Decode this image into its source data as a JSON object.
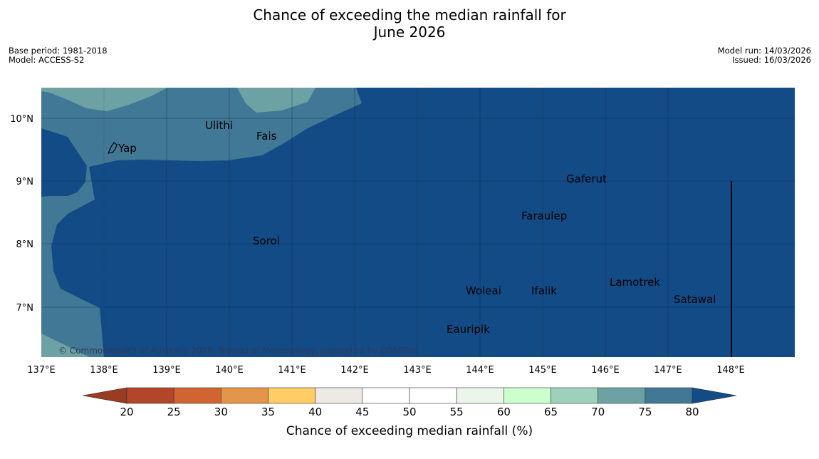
{
  "title": {
    "line1": "Chance of exceeding the median rainfall for",
    "line2": "June 2026"
  },
  "meta_left": {
    "base_period": "Base period: 1981-2018",
    "model": "Model: ACCESS-S2"
  },
  "meta_right": {
    "model_run": "Model run: 14/03/2026",
    "issued": "Issued: 16/03/2026"
  },
  "map": {
    "lon_labels": [
      "137°E",
      "138°E",
      "139°E",
      "140°E",
      "141°E",
      "142°E",
      "143°E",
      "144°E",
      "145°E",
      "146°E",
      "147°E",
      "148°E"
    ],
    "lat_labels": [
      "10°N",
      "9°N",
      "8°N",
      "7°N"
    ],
    "places": [
      {
        "name": "Yap"
      },
      {
        "name": "Ulithi"
      },
      {
        "name": "Fais"
      },
      {
        "name": "Gaferut"
      },
      {
        "name": "Faraulep"
      },
      {
        "name": "Sorol"
      },
      {
        "name": "Lamotrek"
      },
      {
        "name": "Woleai"
      },
      {
        "name": "Ifalik"
      },
      {
        "name": "Satawal"
      },
      {
        "name": "Eauripik"
      }
    ],
    "copyright": "© Commonwealth of Australia 2026, Bureau of Meteorology, supported by COSPPac",
    "colors": {
      "above_80": "#134b87",
      "band_75_80": "#417895",
      "band_70_75": "#6da2a4"
    }
  },
  "colorbar": {
    "ticks": [
      "20",
      "25",
      "30",
      "35",
      "40",
      "45",
      "50",
      "55",
      "60",
      "65",
      "70",
      "75",
      "80"
    ],
    "bins": [
      {
        "from": 20,
        "to": 25,
        "color": "#b3462a"
      },
      {
        "from": 25,
        "to": 30,
        "color": "#d06532"
      },
      {
        "from": 30,
        "to": 35,
        "color": "#e39549"
      },
      {
        "from": 35,
        "to": 40,
        "color": "#ffcd66"
      },
      {
        "from": 40,
        "to": 45,
        "color": "#ede9e4"
      },
      {
        "from": 45,
        "to": 50,
        "color": "#ffffff"
      },
      {
        "from": 50,
        "to": 55,
        "color": "#ffffff"
      },
      {
        "from": 55,
        "to": 60,
        "color": "#ecf5eb"
      },
      {
        "from": 60,
        "to": 65,
        "color": "#ccffcc"
      },
      {
        "from": 65,
        "to": 70,
        "color": "#9dd1bb"
      },
      {
        "from": 70,
        "to": 75,
        "color": "#6da2a4"
      },
      {
        "from": 75,
        "to": 80,
        "color": "#417895"
      }
    ],
    "under_color": "#9a3c22",
    "over_color": "#134b87",
    "label": "Chance of exceeding median rainfall (%)"
  }
}
